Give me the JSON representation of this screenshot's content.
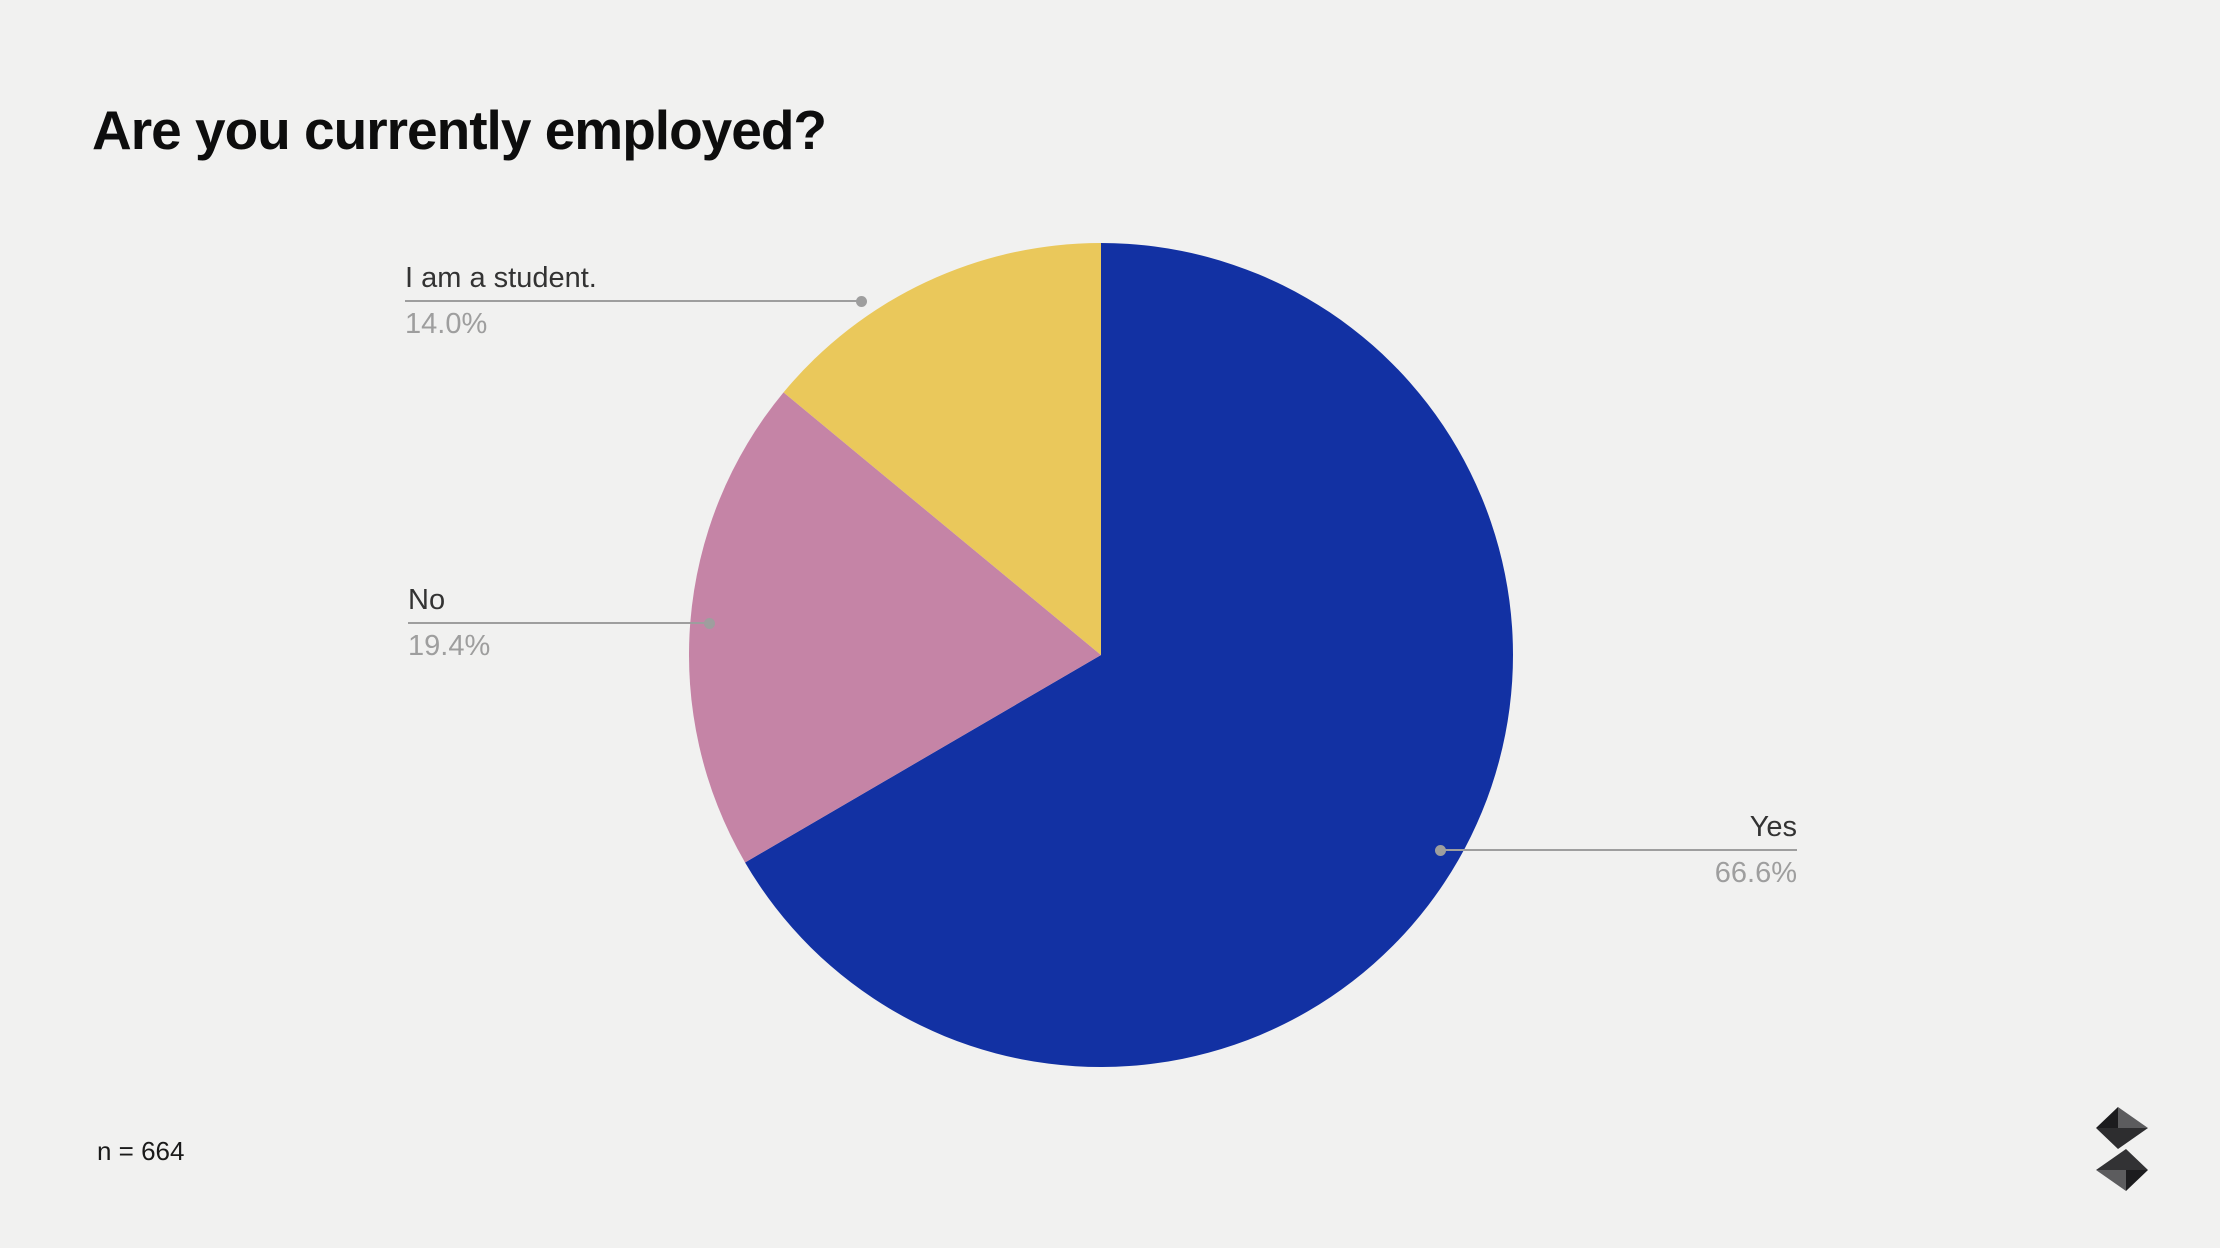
{
  "title": "Are you currently employed?",
  "theme": {
    "canvas_bg": "#f1f1f0",
    "label_color": "#333333",
    "percent_color": "#9e9e9e",
    "leader_color": "#9e9e9e"
  },
  "chart_data": {
    "type": "pie",
    "title": "Are you currently employed?",
    "sample_size": 664,
    "start_angle_deg": 0,
    "direction": "clockwise",
    "legend_position": "none",
    "slices": [
      {
        "label": "Yes",
        "value_pct": 66.6,
        "pct_label": "66.6%",
        "color": "#1231a3"
      },
      {
        "label": "No",
        "value_pct": 19.4,
        "pct_label": "19.4%",
        "color": "#c584a6"
      },
      {
        "label": "I am a student.",
        "value_pct": 14.0,
        "pct_label": "14.0%",
        "color": "#eac85b"
      }
    ]
  },
  "footer": {
    "sample_size_label": "n = 664"
  },
  "logo": {
    "icon": "triangle-s-mark",
    "colors": {
      "dark": "#1c1c1e",
      "gray": "#5c5c5e",
      "mid_top": "#2d2d2f",
      "mid_bottom": "#323234"
    }
  }
}
